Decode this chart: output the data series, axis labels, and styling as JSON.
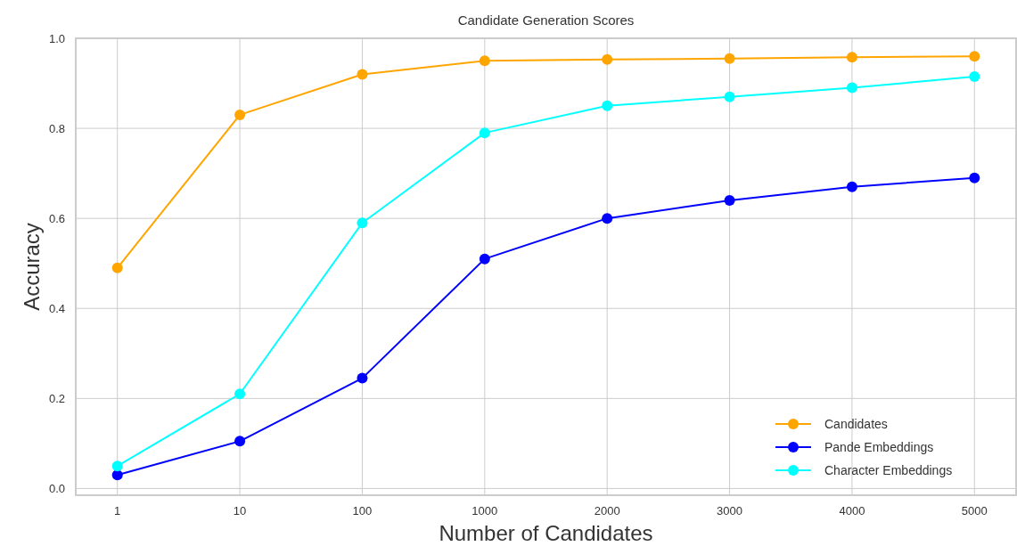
{
  "chart_data": {
    "type": "line",
    "title": "Candidate Generation Scores",
    "xlabel": "Number of Candidates",
    "ylabel": "Accuracy",
    "categories": [
      "1",
      "10",
      "100",
      "1000",
      "2000",
      "3000",
      "4000",
      "5000"
    ],
    "series": [
      {
        "name": "Candidates",
        "color": "#ffa500",
        "values": [
          0.49,
          0.83,
          0.92,
          0.95,
          0.953,
          0.955,
          0.958,
          0.96
        ]
      },
      {
        "name": "Pande Embeddings",
        "color": "#0000ff",
        "values": [
          0.03,
          0.105,
          0.245,
          0.51,
          0.6,
          0.64,
          0.67,
          0.69
        ]
      },
      {
        "name": "Character Embeddings",
        "color": "#00ffff",
        "values": [
          0.05,
          0.21,
          0.59,
          0.79,
          0.85,
          0.87,
          0.89,
          0.915
        ]
      }
    ],
    "ylim": [
      -0.015,
      1.0
    ],
    "yticks": [
      {
        "value": 0,
        "label": "0.0"
      },
      0.2,
      0.4,
      0.6,
      0.8,
      {
        "value": 1,
        "label": "1.0"
      }
    ],
    "grid": true,
    "legend": "bottom right",
    "marker": "circle",
    "line_style": "solid"
  }
}
